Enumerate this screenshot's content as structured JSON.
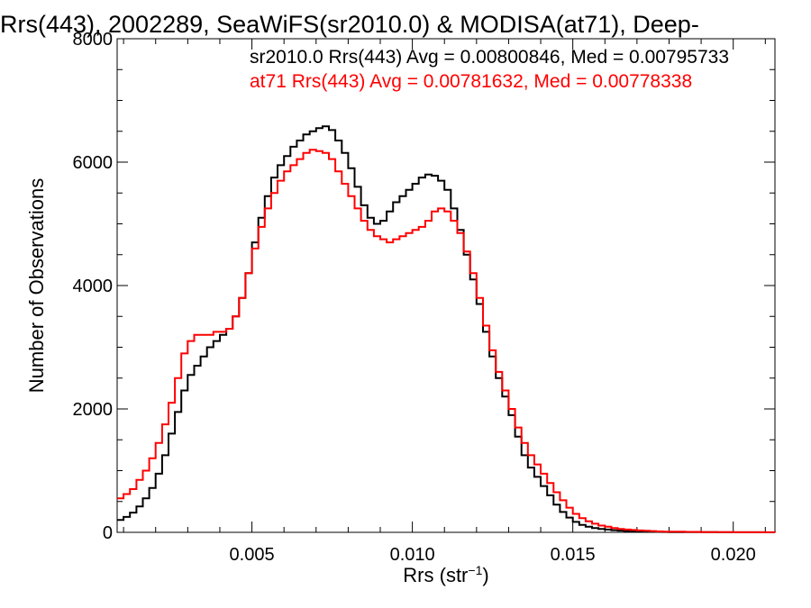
{
  "chart_data": {
    "type": "line",
    "title": "Rrs(443), 2002289, SeaWiFS(sr2010.0) & MODISA(at71), Deep-",
    "xlabel_main": "Rrs (str",
    "xlabel_sup": "−1",
    "xlabel_end": ")",
    "ylabel": "Number of Observations",
    "xlim": [
      0.0008,
      0.0213
    ],
    "ylim": [
      0,
      8000
    ],
    "x_tick_labels": [
      "0.005",
      "0.010",
      "0.015",
      "0.020"
    ],
    "x_ticks": [
      0.005,
      0.01,
      0.015,
      0.02
    ],
    "y_tick_labels": [
      "0",
      "2000",
      "4000",
      "6000",
      "8000"
    ],
    "y_ticks": [
      0,
      2000,
      4000,
      6000,
      8000
    ],
    "grid": false,
    "colors": {
      "sr2010": "#000000",
      "at71": "#ff0000"
    },
    "annotations": [
      "sr2010.0 Rrs(443) Avg = 0.00800846, Med = 0.00795733",
      "at71 Rrs(443) Avg = 0.00781632, Med = 0.00778338"
    ],
    "x": [
      0.0008,
      0.001,
      0.0012,
      0.0014,
      0.0016,
      0.0018,
      0.002,
      0.0022,
      0.0024,
      0.0026,
      0.0028,
      0.003,
      0.0032,
      0.0034,
      0.0036,
      0.0038,
      0.004,
      0.0042,
      0.0044,
      0.0046,
      0.0048,
      0.005,
      0.0052,
      0.0054,
      0.0056,
      0.0058,
      0.006,
      0.0062,
      0.0064,
      0.0066,
      0.0068,
      0.007,
      0.0072,
      0.0074,
      0.0076,
      0.0078,
      0.008,
      0.0082,
      0.0084,
      0.0086,
      0.0088,
      0.009,
      0.0092,
      0.0094,
      0.0096,
      0.0098,
      0.01,
      0.0102,
      0.0104,
      0.0106,
      0.0108,
      0.011,
      0.0112,
      0.0114,
      0.0116,
      0.0118,
      0.012,
      0.0122,
      0.0124,
      0.0126,
      0.0128,
      0.013,
      0.0132,
      0.0134,
      0.0136,
      0.0138,
      0.014,
      0.0142,
      0.0144,
      0.0146,
      0.0148,
      0.015,
      0.0152,
      0.0154,
      0.0156,
      0.0158,
      0.016,
      0.0162,
      0.0164,
      0.0166,
      0.0168,
      0.017,
      0.0172,
      0.0174,
      0.0176,
      0.0178,
      0.018,
      0.0185,
      0.019,
      0.0195,
      0.02,
      0.0205,
      0.021,
      0.0213
    ],
    "series": [
      {
        "name": "sr2010.0",
        "values": [
          200,
          250,
          320,
          420,
          550,
          720,
          950,
          1250,
          1600,
          1950,
          2300,
          2550,
          2700,
          2850,
          3000,
          3100,
          3200,
          3300,
          3500,
          3800,
          4200,
          4700,
          5100,
          5450,
          5750,
          5950,
          6100,
          6250,
          6350,
          6450,
          6500,
          6550,
          6580,
          6520,
          6350,
          6150,
          5900,
          5600,
          5300,
          5100,
          5000,
          5050,
          5200,
          5350,
          5450,
          5550,
          5650,
          5750,
          5800,
          5780,
          5700,
          5550,
          5250,
          4900,
          4500,
          4100,
          3700,
          3250,
          2850,
          2500,
          2200,
          1900,
          1550,
          1250,
          1050,
          900,
          750,
          600,
          450,
          330,
          240,
          170,
          120,
          90,
          70,
          55,
          45,
          35,
          28,
          22,
          18,
          15,
          12,
          10,
          8,
          6,
          5,
          4,
          3,
          2,
          1,
          1,
          0,
          0
        ]
      },
      {
        "name": "at71",
        "values": [
          550,
          620,
          700,
          850,
          1000,
          1200,
          1450,
          1750,
          2100,
          2500,
          2900,
          3100,
          3200,
          3200,
          3200,
          3250,
          3250,
          3300,
          3500,
          3800,
          4200,
          4600,
          4950,
          5250,
          5500,
          5700,
          5850,
          5950,
          6050,
          6150,
          6200,
          6180,
          6150,
          6050,
          5850,
          5650,
          5450,
          5250,
          5050,
          4900,
          4800,
          4750,
          4700,
          4750,
          4800,
          4850,
          4900,
          4950,
          5050,
          5200,
          5250,
          5200,
          5050,
          4850,
          4550,
          4200,
          3800,
          3350,
          2950,
          2600,
          2300,
          2000,
          1700,
          1450,
          1250,
          1100,
          950,
          800,
          650,
          520,
          400,
          300,
          230,
          180,
          140,
          110,
          90,
          70,
          55,
          45,
          38,
          30,
          25,
          20,
          15,
          12,
          10,
          7,
          5,
          3,
          2,
          1,
          1,
          0
        ]
      }
    ]
  }
}
